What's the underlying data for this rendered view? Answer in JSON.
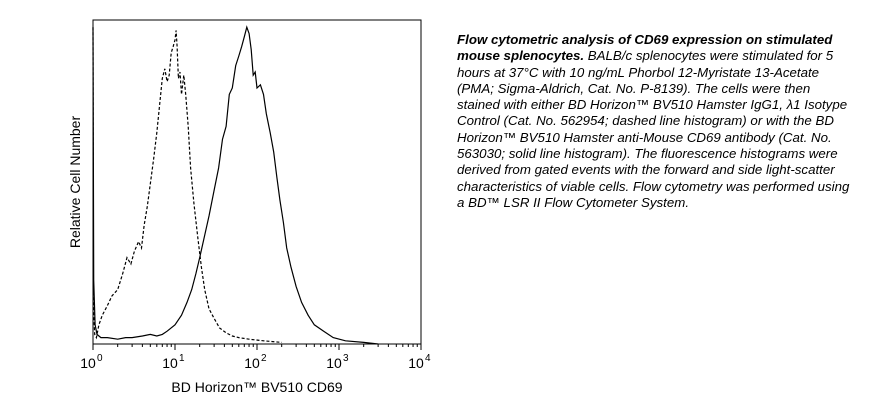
{
  "chart_data": {
    "type": "line",
    "title": "",
    "xlabel": "BD Horizon™ BV510 CD69",
    "ylabel": "Relative Cell Number",
    "xscale": "log",
    "xlim": [
      1,
      10000
    ],
    "ylim": [
      0,
      1
    ],
    "grid": false,
    "x_ticks": [
      {
        "value": 1,
        "base": "10",
        "exp": "0"
      },
      {
        "value": 10,
        "base": "10",
        "exp": "1"
      },
      {
        "value": 100,
        "base": "10",
        "exp": "2"
      },
      {
        "value": 1000,
        "base": "10",
        "exp": "3"
      },
      {
        "value": 10000,
        "base": "10",
        "exp": "4"
      }
    ],
    "series": [
      {
        "style": "dashed",
        "color": "#000000",
        "points": [
          [
            1.0,
            0.99
          ],
          [
            1.01,
            0.12
          ],
          [
            1.05,
            0.03
          ],
          [
            1.1,
            0.02
          ],
          [
            1.18,
            0.06
          ],
          [
            1.3,
            0.09
          ],
          [
            1.5,
            0.12
          ],
          [
            1.7,
            0.15
          ],
          [
            2.0,
            0.17
          ],
          [
            2.3,
            0.22
          ],
          [
            2.6,
            0.27
          ],
          [
            2.9,
            0.25
          ],
          [
            3.2,
            0.29
          ],
          [
            3.6,
            0.32
          ],
          [
            3.9,
            0.3
          ],
          [
            4.2,
            0.37
          ],
          [
            4.6,
            0.43
          ],
          [
            5.0,
            0.5
          ],
          [
            5.5,
            0.58
          ],
          [
            6.0,
            0.66
          ],
          [
            6.5,
            0.75
          ],
          [
            7.0,
            0.83
          ],
          [
            7.5,
            0.86
          ],
          [
            8.0,
            0.82
          ],
          [
            8.5,
            0.84
          ],
          [
            9.0,
            0.91
          ],
          [
            9.5,
            0.93
          ],
          [
            10.0,
            0.95
          ],
          [
            10.3,
            0.98
          ],
          [
            10.6,
            0.93
          ],
          [
            11.0,
            0.83
          ],
          [
            11.5,
            0.85
          ],
          [
            12.0,
            0.78
          ],
          [
            12.8,
            0.84
          ],
          [
            13.5,
            0.78
          ],
          [
            14.5,
            0.68
          ],
          [
            15.5,
            0.55
          ],
          [
            17.0,
            0.44
          ],
          [
            19.0,
            0.33
          ],
          [
            21.0,
            0.24
          ],
          [
            23.0,
            0.17
          ],
          [
            26.0,
            0.11
          ],
          [
            30.0,
            0.08
          ],
          [
            35.0,
            0.05
          ],
          [
            42.0,
            0.035
          ],
          [
            50.0,
            0.025
          ],
          [
            60.0,
            0.02
          ],
          [
            80.0,
            0.015
          ],
          [
            120.0,
            0.01
          ],
          [
            200.0,
            0.005
          ]
        ]
      },
      {
        "style": "solid",
        "color": "#000000",
        "points": [
          [
            1.0,
            0.99
          ],
          [
            1.02,
            0.2
          ],
          [
            1.06,
            0.06
          ],
          [
            1.12,
            0.03
          ],
          [
            1.25,
            0.02
          ],
          [
            1.5,
            0.02
          ],
          [
            2.0,
            0.015
          ],
          [
            2.5,
            0.02
          ],
          [
            3.0,
            0.02
          ],
          [
            4.0,
            0.025
          ],
          [
            5.0,
            0.03
          ],
          [
            6.0,
            0.025
          ],
          [
            7.0,
            0.03
          ],
          [
            8.0,
            0.04
          ],
          [
            10.0,
            0.06
          ],
          [
            12.0,
            0.09
          ],
          [
            14.0,
            0.13
          ],
          [
            16.0,
            0.17
          ],
          [
            18.0,
            0.22
          ],
          [
            20.0,
            0.27
          ],
          [
            23.0,
            0.34
          ],
          [
            26.0,
            0.4
          ],
          [
            30.0,
            0.48
          ],
          [
            34.0,
            0.55
          ],
          [
            38.0,
            0.64
          ],
          [
            42.0,
            0.68
          ],
          [
            46.0,
            0.78
          ],
          [
            50.0,
            0.8
          ],
          [
            55.0,
            0.87
          ],
          [
            60.0,
            0.9
          ],
          [
            65.0,
            0.93
          ],
          [
            70.0,
            0.96
          ],
          [
            75.0,
            0.99
          ],
          [
            80.0,
            0.97
          ],
          [
            85.0,
            0.92
          ],
          [
            90.0,
            0.84
          ],
          [
            95.0,
            0.85
          ],
          [
            100.0,
            0.8
          ],
          [
            110.0,
            0.81
          ],
          [
            120.0,
            0.78
          ],
          [
            130.0,
            0.72
          ],
          [
            145.0,
            0.66
          ],
          [
            160.0,
            0.6
          ],
          [
            175.0,
            0.52
          ],
          [
            190.0,
            0.45
          ],
          [
            210.0,
            0.38
          ],
          [
            230.0,
            0.3
          ],
          [
            260.0,
            0.24
          ],
          [
            300.0,
            0.18
          ],
          [
            350.0,
            0.13
          ],
          [
            420.0,
            0.09
          ],
          [
            500.0,
            0.06
          ],
          [
            650.0,
            0.04
          ],
          [
            850.0,
            0.02
          ],
          [
            1200.0,
            0.01
          ],
          [
            2000.0,
            0.005
          ],
          [
            3000.0,
            0.0
          ]
        ]
      }
    ]
  },
  "caption": {
    "bold": "Flow cytometric analysis of CD69 expression on stimulated mouse splenocytes.",
    "body": " BALB/c splenocytes were stimulated for 5 hours at 37°C with 10 ng/mL Phorbol 12-Myristate 13-Acetate (PMA; Sigma-Aldrich, Cat. No. P-8139). The cells were then stained with either BD Horizon™ BV510 Hamster IgG1, λ1 Isotype Control (Cat. No. 562954; dashed line histogram) or with the BD Horizon™ BV510 Hamster anti-Mouse CD69 antibody (Cat. No. 563030; solid line histogram). The fluorescence histograms were derived from gated events with the forward and side light-scatter characteristics of viable cells. Flow cytometry was performed using a BD™ LSR II Flow Cytometer System."
  }
}
